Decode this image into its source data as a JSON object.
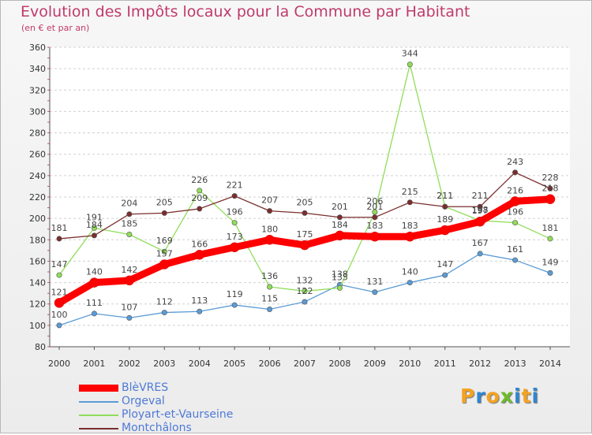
{
  "header": {
    "title": "Evolution des Impôts locaux pour la Commune par Habitant",
    "subtitle": "(en € et par an)"
  },
  "chart_data": {
    "type": "line",
    "title": "Evolution des Impôts locaux pour la Commune par Habitant",
    "subtitle": "(en € et par an)",
    "xlabel": "",
    "ylabel": "",
    "x": [
      2000,
      2001,
      2002,
      2003,
      2004,
      2005,
      2006,
      2007,
      2008,
      2009,
      2010,
      2011,
      2012,
      2013,
      2014
    ],
    "ylim": [
      80,
      360
    ],
    "yticks": [
      80,
      100,
      120,
      140,
      160,
      180,
      200,
      220,
      240,
      260,
      280,
      300,
      320,
      340,
      360
    ],
    "grid": "horizontal dashed",
    "legend_position": "bottom-left",
    "series": [
      {
        "name": "BlèVRES",
        "color": "#ff0000",
        "values": [
          121,
          140,
          142,
          157,
          166,
          173,
          180,
          175,
          184,
          183,
          183,
          189,
          197,
          216,
          218
        ]
      },
      {
        "name": "Orgeval",
        "color": "#5b9bd5",
        "values": [
          100,
          111,
          107,
          112,
          113,
          119,
          115,
          122,
          138,
          131,
          140,
          147,
          167,
          161,
          149
        ]
      },
      {
        "name": "Ployart-et-Vaurseine",
        "color": "#90dd5a",
        "values": [
          147,
          191,
          185,
          169,
          226,
          196,
          136,
          132,
          135,
          206,
          344,
          211,
          198,
          196,
          181
        ]
      },
      {
        "name": "Montchâlons",
        "color": "#7a2e2e",
        "values": [
          181,
          184,
          204,
          205,
          209,
          221,
          207,
          205,
          201,
          201,
          215,
          211,
          211,
          243,
          228
        ]
      }
    ]
  },
  "logo": {
    "letters": [
      "P",
      "r",
      "o",
      "x",
      "i",
      "t",
      "i"
    ],
    "colors": [
      "#f5a21f",
      "#2e86d1",
      "#f5a21f",
      "#6dbb2a",
      "#2e86d1",
      "#f5a21f",
      "#2e86d1"
    ]
  }
}
